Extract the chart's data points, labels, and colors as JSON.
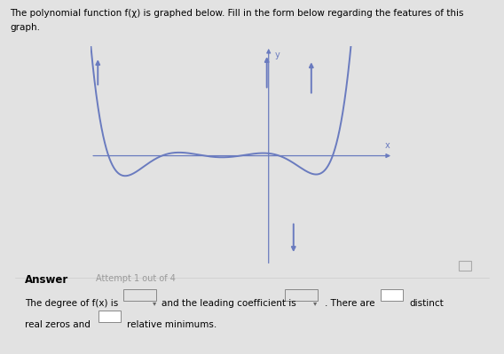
{
  "title_line1": "The polynomial function f(χ) is graphed below. Fill in the form below regarding the features of this",
  "title_line2": "graph.",
  "answer_label": "Answer",
  "attempt_label": "Attempt 1 out of 4",
  "bottom_text1": "The degree of f(x) is",
  "bottom_text2": "and the leading coefficient is",
  "bottom_text3": ". There are",
  "bottom_text4": "distinct",
  "bottom_text5": "real zeros and",
  "bottom_text6": "relative minimums.",
  "curve_color": "#6a7bbf",
  "axis_color": "#6a7bbf",
  "background_color": "#e2e2e2",
  "xlim": [
    -5,
    3.5
  ],
  "ylim": [
    -4.0,
    4.0
  ],
  "fig_width": 5.68,
  "fig_height": 3.99
}
